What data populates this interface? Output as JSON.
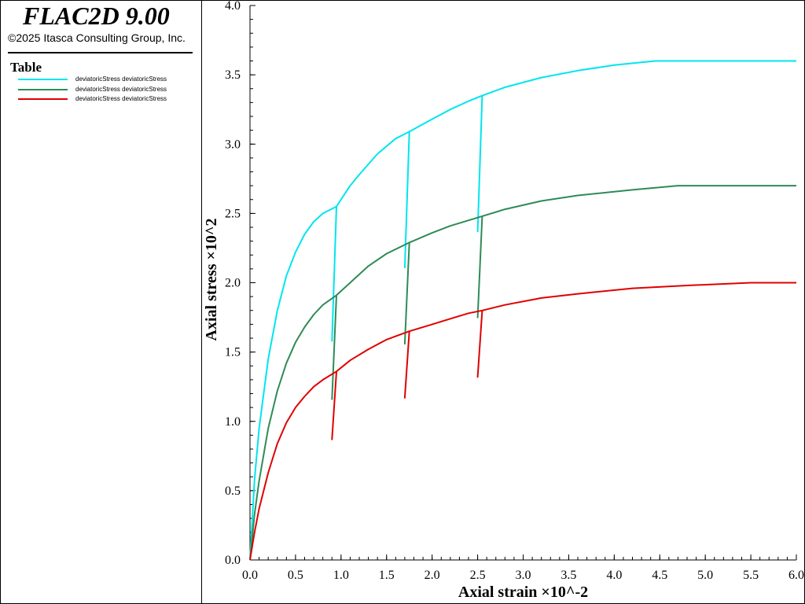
{
  "app": {
    "title": "FLAC2D 9.00",
    "copyright": "©2025 Itasca Consulting Group, Inc."
  },
  "legend": {
    "title": "Table",
    "entries": [
      {
        "label": "deviatoricStress deviatoricStress",
        "color": "#00e5ee"
      },
      {
        "label": "deviatoricStress deviatoricStress",
        "color": "#2e8b57"
      },
      {
        "label": "deviatoricStress deviatoricStress",
        "color": "#e00000"
      }
    ]
  },
  "chart_data": {
    "type": "line",
    "xlabel": "Axial strain ×10^-2",
    "ylabel": "Axial stress ×10^2",
    "xlim": [
      0,
      6
    ],
    "ylim": [
      0,
      4
    ],
    "xticks": [
      "0.0",
      "0.5",
      "1.0",
      "1.5",
      "2.0",
      "2.5",
      "3.0",
      "3.5",
      "4.0",
      "4.5",
      "5.0",
      "5.5",
      "6.0"
    ],
    "yticks": [
      "0.0",
      "0.5",
      "1.0",
      "1.5",
      "2.0",
      "2.5",
      "3.0",
      "3.5",
      "4.0"
    ],
    "grid": false,
    "legend_position": "left-panel",
    "series": [
      {
        "color": "#00e5ee",
        "points": [
          [
            0,
            0
          ],
          [
            0.05,
            0.58
          ],
          [
            0.1,
            0.95
          ],
          [
            0.2,
            1.45
          ],
          [
            0.3,
            1.8
          ],
          [
            0.4,
            2.05
          ],
          [
            0.5,
            2.22
          ],
          [
            0.6,
            2.35
          ],
          [
            0.7,
            2.44
          ],
          [
            0.8,
            2.5
          ],
          [
            0.95,
            2.55
          ],
          [
            0.9,
            1.58
          ],
          [
            0.95,
            2.55
          ],
          [
            1.1,
            2.7
          ],
          [
            1.2,
            2.78
          ],
          [
            1.4,
            2.93
          ],
          [
            1.6,
            3.04
          ],
          [
            1.75,
            3.09
          ],
          [
            1.7,
            2.11
          ],
          [
            1.75,
            3.09
          ],
          [
            2.0,
            3.18
          ],
          [
            2.2,
            3.25
          ],
          [
            2.4,
            3.31
          ],
          [
            2.55,
            3.35
          ],
          [
            2.5,
            2.37
          ],
          [
            2.55,
            3.35
          ],
          [
            2.8,
            3.41
          ],
          [
            3.2,
            3.48
          ],
          [
            3.6,
            3.53
          ],
          [
            4.0,
            3.57
          ],
          [
            4.45,
            3.6
          ],
          [
            6.0,
            3.6
          ]
        ]
      },
      {
        "color": "#2e8b57",
        "points": [
          [
            0,
            0
          ],
          [
            0.05,
            0.33
          ],
          [
            0.1,
            0.57
          ],
          [
            0.2,
            0.95
          ],
          [
            0.3,
            1.22
          ],
          [
            0.4,
            1.42
          ],
          [
            0.5,
            1.57
          ],
          [
            0.6,
            1.68
          ],
          [
            0.7,
            1.77
          ],
          [
            0.8,
            1.84
          ],
          [
            0.95,
            1.91
          ],
          [
            0.9,
            1.16
          ],
          [
            0.95,
            1.91
          ],
          [
            1.1,
            2.0
          ],
          [
            1.3,
            2.12
          ],
          [
            1.5,
            2.21
          ],
          [
            1.75,
            2.29
          ],
          [
            1.7,
            1.56
          ],
          [
            1.75,
            2.29
          ],
          [
            2.0,
            2.36
          ],
          [
            2.2,
            2.41
          ],
          [
            2.4,
            2.45
          ],
          [
            2.55,
            2.48
          ],
          [
            2.5,
            1.75
          ],
          [
            2.55,
            2.48
          ],
          [
            2.8,
            2.53
          ],
          [
            3.2,
            2.59
          ],
          [
            3.6,
            2.63
          ],
          [
            4.2,
            2.67
          ],
          [
            4.7,
            2.7
          ],
          [
            6.0,
            2.7
          ]
        ]
      },
      {
        "color": "#e00000",
        "points": [
          [
            0,
            0
          ],
          [
            0.05,
            0.2
          ],
          [
            0.1,
            0.37
          ],
          [
            0.2,
            0.63
          ],
          [
            0.3,
            0.84
          ],
          [
            0.4,
            0.99
          ],
          [
            0.5,
            1.1
          ],
          [
            0.6,
            1.18
          ],
          [
            0.7,
            1.25
          ],
          [
            0.8,
            1.3
          ],
          [
            0.95,
            1.36
          ],
          [
            0.9,
            0.87
          ],
          [
            0.95,
            1.36
          ],
          [
            1.1,
            1.44
          ],
          [
            1.3,
            1.52
          ],
          [
            1.5,
            1.59
          ],
          [
            1.75,
            1.65
          ],
          [
            1.7,
            1.17
          ],
          [
            1.75,
            1.65
          ],
          [
            2.0,
            1.7
          ],
          [
            2.2,
            1.74
          ],
          [
            2.4,
            1.78
          ],
          [
            2.55,
            1.8
          ],
          [
            2.5,
            1.32
          ],
          [
            2.55,
            1.8
          ],
          [
            2.8,
            1.84
          ],
          [
            3.2,
            1.89
          ],
          [
            3.6,
            1.92
          ],
          [
            4.2,
            1.96
          ],
          [
            4.8,
            1.98
          ],
          [
            5.5,
            2.0
          ],
          [
            6.0,
            2.0
          ]
        ]
      }
    ]
  }
}
